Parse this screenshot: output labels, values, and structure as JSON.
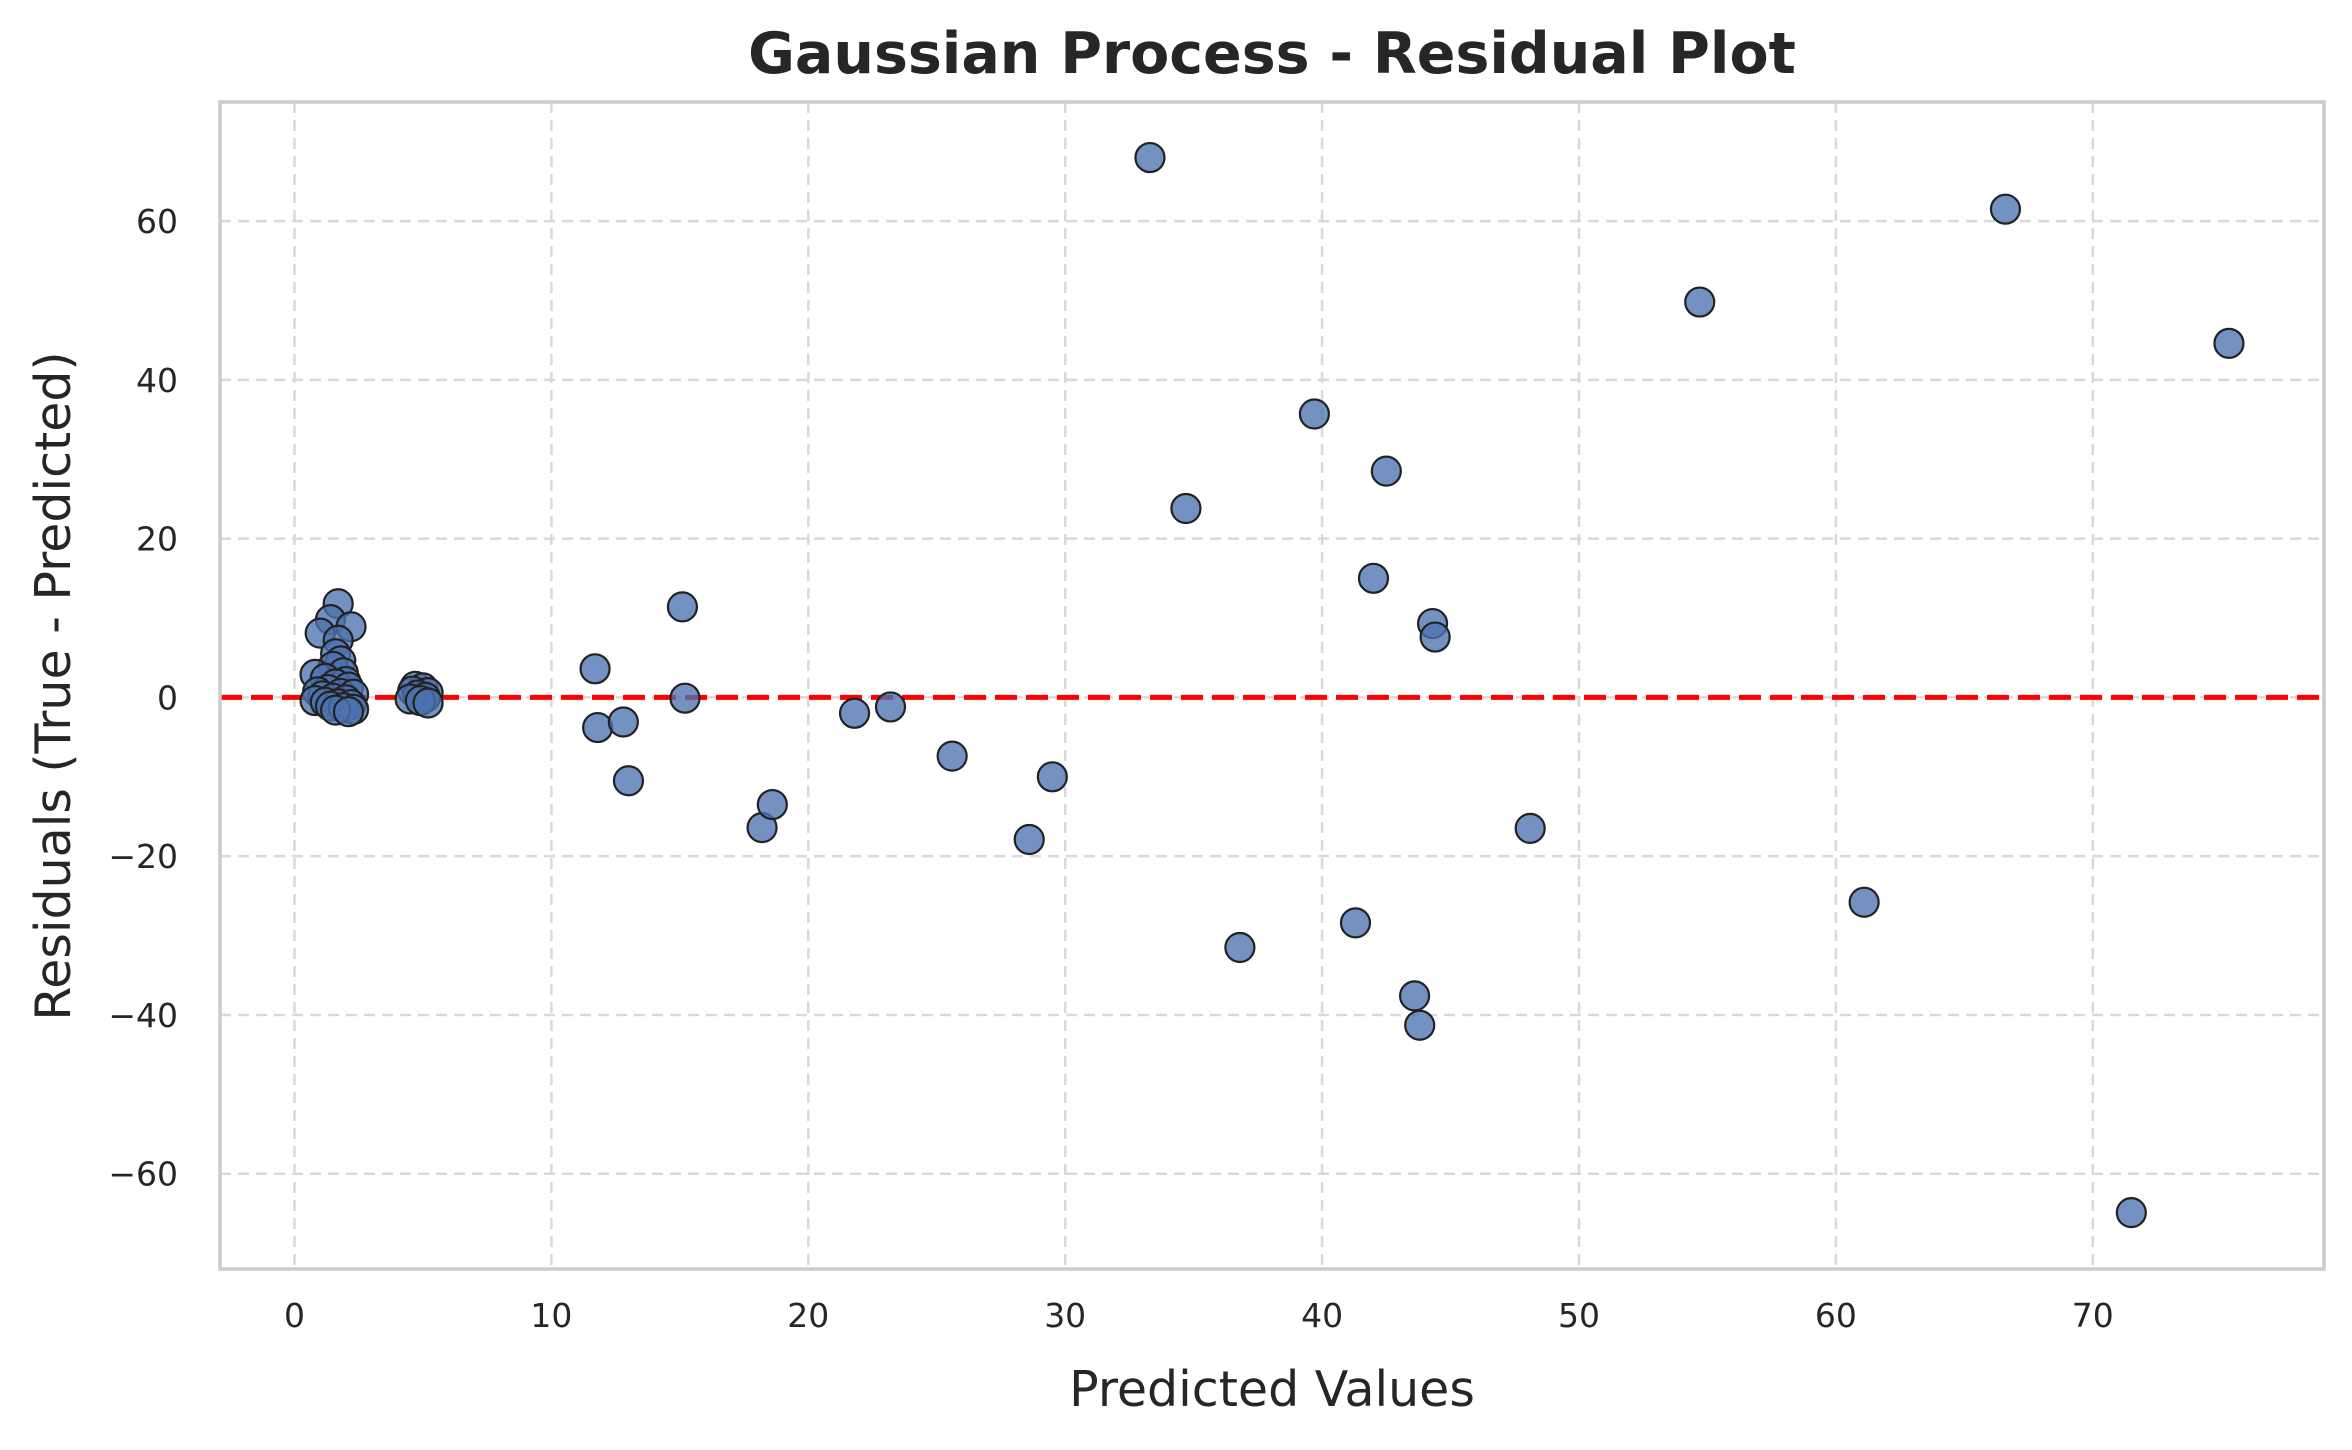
{
  "chart_data": {
    "type": "scatter",
    "title": "Gaussian Process - Residual Plot",
    "xlabel": "Predicted Values",
    "ylabel": "Residuals (True - Predicted)",
    "xlim": [
      -2.9,
      79.0
    ],
    "ylim": [
      -72,
      75
    ],
    "xticks": [
      0,
      10,
      20,
      30,
      40,
      50,
      60,
      70
    ],
    "yticks": [
      -60,
      -40,
      -20,
      0,
      20,
      40,
      60
    ],
    "grid": true,
    "reference_line": {
      "y": 0,
      "style": "dashed",
      "color": "#ff0000"
    },
    "point_color": "#4c72b0",
    "points": [
      {
        "x": 33.3,
        "y": 68.0
      },
      {
        "x": 66.6,
        "y": 61.5
      },
      {
        "x": 54.7,
        "y": 49.8
      },
      {
        "x": 75.3,
        "y": 44.6
      },
      {
        "x": 39.7,
        "y": 35.7
      },
      {
        "x": 42.5,
        "y": 28.5
      },
      {
        "x": 34.7,
        "y": 23.8
      },
      {
        "x": 42.0,
        "y": 15.0
      },
      {
        "x": 44.3,
        "y": 9.3
      },
      {
        "x": 44.4,
        "y": 7.6
      },
      {
        "x": 15.1,
        "y": 11.4
      },
      {
        "x": 11.7,
        "y": 3.6
      },
      {
        "x": 15.2,
        "y": -0.1
      },
      {
        "x": 21.8,
        "y": -2.0
      },
      {
        "x": 23.2,
        "y": -1.2
      },
      {
        "x": 11.8,
        "y": -3.8
      },
      {
        "x": 12.8,
        "y": -3.1
      },
      {
        "x": 13.0,
        "y": -10.5
      },
      {
        "x": 25.6,
        "y": -7.4
      },
      {
        "x": 29.5,
        "y": -10.0
      },
      {
        "x": 18.2,
        "y": -16.4
      },
      {
        "x": 18.6,
        "y": -13.5
      },
      {
        "x": 28.6,
        "y": -17.9
      },
      {
        "x": 48.1,
        "y": -16.5
      },
      {
        "x": 36.8,
        "y": -31.5
      },
      {
        "x": 41.3,
        "y": -28.4
      },
      {
        "x": 61.1,
        "y": -25.8
      },
      {
        "x": 43.6,
        "y": -37.6
      },
      {
        "x": 43.8,
        "y": -41.3
      },
      {
        "x": 71.5,
        "y": -64.9
      },
      {
        "x": 1.7,
        "y": 11.8
      },
      {
        "x": 1.4,
        "y": 9.8
      },
      {
        "x": 2.2,
        "y": 8.9
      },
      {
        "x": 1.0,
        "y": 8.1
      },
      {
        "x": 1.7,
        "y": 7.2
      },
      {
        "x": 1.6,
        "y": 5.5
      },
      {
        "x": 1.8,
        "y": 4.6
      },
      {
        "x": 1.5,
        "y": 3.9
      },
      {
        "x": 1.9,
        "y": 3.1
      },
      {
        "x": 0.8,
        "y": 2.9
      },
      {
        "x": 1.2,
        "y": 2.4
      },
      {
        "x": 2.0,
        "y": 2.0
      },
      {
        "x": 1.6,
        "y": 1.7
      },
      {
        "x": 2.1,
        "y": 1.3
      },
      {
        "x": 1.3,
        "y": 1.0
      },
      {
        "x": 0.9,
        "y": 0.7
      },
      {
        "x": 1.8,
        "y": 0.5
      },
      {
        "x": 2.3,
        "y": 0.4
      },
      {
        "x": 1.1,
        "y": 0.2
      },
      {
        "x": 1.5,
        "y": -0.1
      },
      {
        "x": 2.0,
        "y": -0.3
      },
      {
        "x": 0.8,
        "y": -0.4
      },
      {
        "x": 1.2,
        "y": -0.6
      },
      {
        "x": 1.7,
        "y": -0.8
      },
      {
        "x": 2.2,
        "y": -0.9
      },
      {
        "x": 1.4,
        "y": -1.1
      },
      {
        "x": 1.9,
        "y": -1.3
      },
      {
        "x": 2.3,
        "y": -1.5
      },
      {
        "x": 1.6,
        "y": -1.6
      },
      {
        "x": 2.1,
        "y": -1.8
      },
      {
        "x": 4.7,
        "y": 1.4
      },
      {
        "x": 5.0,
        "y": 1.2
      },
      {
        "x": 4.6,
        "y": 0.8
      },
      {
        "x": 5.2,
        "y": 0.6
      },
      {
        "x": 4.8,
        "y": 0.3
      },
      {
        "x": 5.1,
        "y": 0.0
      },
      {
        "x": 4.5,
        "y": -0.2
      },
      {
        "x": 4.9,
        "y": -0.4
      },
      {
        "x": 5.2,
        "y": -0.7
      }
    ]
  }
}
